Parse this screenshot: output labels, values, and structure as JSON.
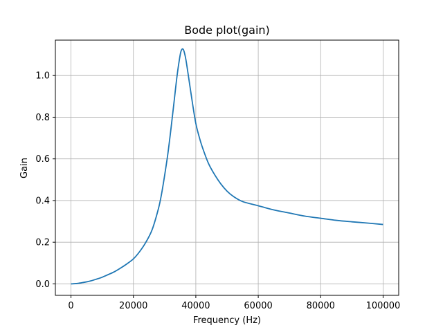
{
  "chart_data": {
    "type": "line",
    "title": "Bode plot(gain)",
    "xlabel": "Frequency (Hz)",
    "ylabel": "Gain",
    "xlim": [
      -5000,
      105000
    ],
    "ylim": [
      -0.055,
      1.17
    ],
    "xticks": [
      0,
      20000,
      40000,
      60000,
      80000,
      100000
    ],
    "xtick_labels": [
      "0",
      "20000",
      "40000",
      "60000",
      "80000",
      "100000"
    ],
    "yticks": [
      0.0,
      0.2,
      0.4,
      0.6,
      0.8,
      1.0
    ],
    "ytick_labels": [
      "0.0",
      "0.2",
      "0.4",
      "0.6",
      "0.8",
      "1.0"
    ],
    "grid": true,
    "color": "#1f77b4",
    "series": [
      {
        "x": [
          0,
          2000,
          4000,
          6000,
          8000,
          10000,
          12000,
          14000,
          16000,
          18000,
          20000,
          22000,
          24000,
          26000,
          28000,
          29000,
          30000,
          31000,
          32000,
          33000,
          34000,
          35000,
          35500,
          36000,
          36500,
          37000,
          38000,
          39000,
          40000,
          41000,
          42000,
          44000,
          46000,
          48000,
          50000,
          52000,
          55000,
          60000,
          65000,
          70000,
          75000,
          80000,
          85000,
          90000,
          95000,
          100000
        ],
        "y": [
          0.0,
          0.002,
          0.007,
          0.013,
          0.022,
          0.032,
          0.045,
          0.059,
          0.077,
          0.097,
          0.12,
          0.155,
          0.2,
          0.26,
          0.36,
          0.43,
          0.52,
          0.62,
          0.74,
          0.87,
          1.0,
          1.1,
          1.125,
          1.125,
          1.1,
          1.06,
          0.96,
          0.86,
          0.77,
          0.71,
          0.66,
          0.58,
          0.525,
          0.48,
          0.445,
          0.42,
          0.395,
          0.375,
          0.355,
          0.34,
          0.325,
          0.315,
          0.305,
          0.298,
          0.292,
          0.285
        ]
      }
    ]
  }
}
